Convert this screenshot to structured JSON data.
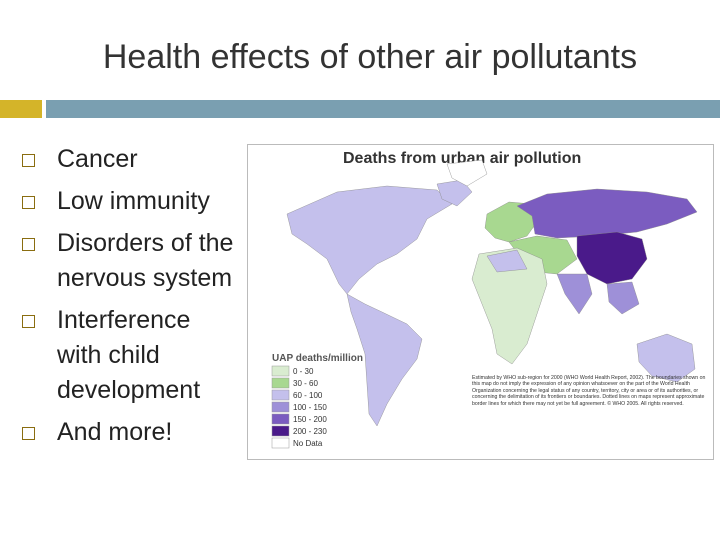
{
  "title": "Health effects of other air pollutants",
  "bullets": [
    "Cancer",
    "Low immunity",
    "Disorders of the nervous system",
    "Interference with child development",
    "And more!"
  ],
  "map": {
    "title": "Deaths from urban air pollution",
    "legend_title": "UAP deaths/million",
    "legend": [
      {
        "label": "0 - 30",
        "color": "#d9ecd0"
      },
      {
        "label": "30 - 60",
        "color": "#a8d890"
      },
      {
        "label": "60 - 100",
        "color": "#c4c0ec"
      },
      {
        "label": "100 - 150",
        "color": "#9e90d8"
      },
      {
        "label": "150 - 200",
        "color": "#7b5cc0"
      },
      {
        "label": "200 - 230",
        "color": "#4a1a8a"
      },
      {
        "label": "No Data",
        "color": "#ffffff"
      }
    ],
    "footnote": "Estimated by WHO sub-region for 2000 (WHO World Health Report, 2002). The boundaries shown on this map do not imply the expression of any opinion whatsoever on the part of the World Health Organization concerning the legal status of any country, territory, city or area or of its authorities, or concerning the delimitation of its frontiers or boundaries. Dotted lines on maps represent approximate border lines for which there may not yet be full agreement. © WHO 2005. All rights reserved."
  }
}
